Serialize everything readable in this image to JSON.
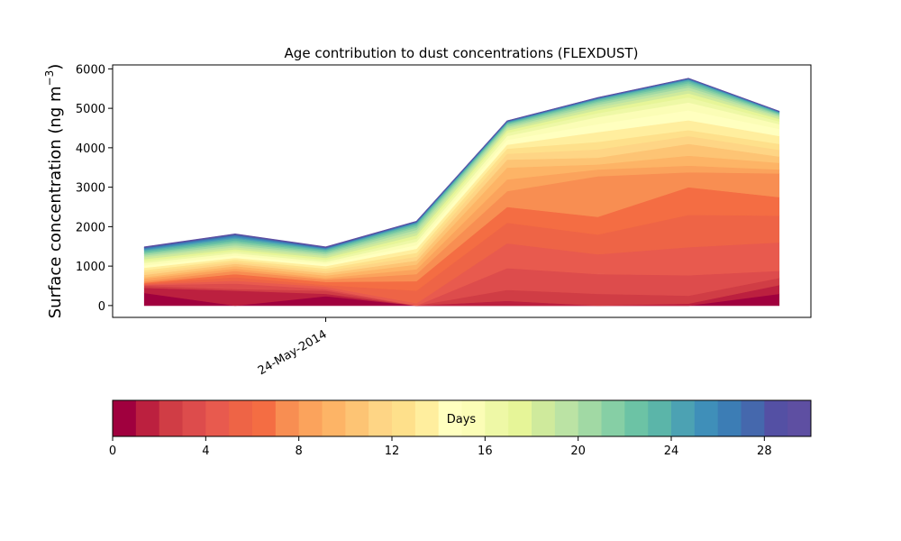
{
  "chart_data": [
    {
      "type": "area",
      "title": "Age contribution to dust concentrations (FLEXDUST)",
      "xlabel": "",
      "ylabel": "Surface concentration (ng m",
      "ylabel_sup": "−3",
      "ylabel_close": ")",
      "xtick_labels": [
        {
          "x": 2,
          "label": "24-May-2014"
        }
      ],
      "yticks": [
        0,
        1000,
        2000,
        3000,
        4000,
        5000,
        6000
      ],
      "ytick_labels": [
        "0",
        "1000",
        "2000",
        "3000",
        "4000",
        "5000",
        "6000"
      ],
      "x": [
        0,
        1,
        2,
        3,
        4,
        5,
        6,
        7
      ],
      "xlim": [
        -0.35,
        7.35
      ],
      "ylim": [
        -300,
        6100
      ],
      "n_days": 30,
      "cumulative_levels": [
        {
          "day": 1,
          "values": [
            320,
            0,
            240,
            0,
            0,
            0,
            0,
            300
          ]
        },
        {
          "day": 2,
          "values": [
            450,
            380,
            300,
            0,
            120,
            0,
            50,
            520
          ]
        },
        {
          "day": 3,
          "values": [
            500,
            420,
            380,
            0,
            400,
            300,
            250,
            700
          ]
        },
        {
          "day": 4,
          "values": [
            520,
            560,
            420,
            0,
            950,
            800,
            770,
            880
          ]
        },
        {
          "day": 5,
          "values": [
            540,
            630,
            480,
            60,
            1580,
            1300,
            1480,
            1600
          ]
        },
        {
          "day": 6,
          "values": [
            560,
            720,
            520,
            380,
            2100,
            1800,
            2300,
            2280
          ]
        },
        {
          "day": 7,
          "values": [
            580,
            800,
            600,
            620,
            2500,
            2250,
            3000,
            2750
          ]
        },
        {
          "day": 8,
          "values": [
            620,
            880,
            660,
            800,
            2900,
            3280,
            3380,
            3350
          ]
        },
        {
          "day": 9,
          "values": [
            680,
            940,
            700,
            920,
            3200,
            3450,
            3550,
            3450
          ]
        },
        {
          "day": 10,
          "values": [
            720,
            1000,
            760,
            1040,
            3500,
            3580,
            3800,
            3620
          ]
        },
        {
          "day": 11,
          "values": [
            780,
            1060,
            820,
            1140,
            3700,
            3750,
            4100,
            3780
          ]
        },
        {
          "day": 12,
          "values": [
            840,
            1110,
            880,
            1240,
            3850,
            3960,
            4300,
            3950
          ]
        },
        {
          "day": 13,
          "values": [
            900,
            1160,
            940,
            1340,
            3980,
            4150,
            4450,
            4100
          ]
        },
        {
          "day": 14,
          "values": [
            960,
            1210,
            1000,
            1440,
            4080,
            4400,
            4700,
            4300
          ]
        },
        {
          "day": 15,
          "values": [
            1020,
            1270,
            1060,
            1530,
            4200,
            4600,
            4950,
            4480
          ]
        },
        {
          "day": 16,
          "values": [
            1080,
            1330,
            1110,
            1620,
            4300,
            4780,
            5150,
            4600
          ]
        },
        {
          "day": 17,
          "values": [
            1130,
            1380,
            1160,
            1700,
            4380,
            4880,
            5280,
            4670
          ]
        },
        {
          "day": 18,
          "values": [
            1180,
            1430,
            1210,
            1780,
            4440,
            4960,
            5380,
            4730
          ]
        },
        {
          "day": 19,
          "values": [
            1230,
            1480,
            1260,
            1850,
            4490,
            5030,
            5460,
            4780
          ]
        },
        {
          "day": 20,
          "values": [
            1270,
            1530,
            1300,
            1920,
            4530,
            5090,
            5530,
            4810
          ]
        },
        {
          "day": 21,
          "values": [
            1310,
            1580,
            1340,
            1980,
            4570,
            5140,
            5590,
            4840
          ]
        },
        {
          "day": 22,
          "values": [
            1340,
            1620,
            1370,
            2020,
            4600,
            5180,
            5640,
            4860
          ]
        },
        {
          "day": 23,
          "values": [
            1370,
            1660,
            1400,
            2060,
            4620,
            5210,
            5680,
            4880
          ]
        },
        {
          "day": 24,
          "values": [
            1400,
            1700,
            1420,
            2080,
            4640,
            5230,
            5710,
            4890
          ]
        },
        {
          "day": 25,
          "values": [
            1420,
            1730,
            1440,
            2100,
            4650,
            5240,
            5730,
            4900
          ]
        },
        {
          "day": 26,
          "values": [
            1440,
            1760,
            1450,
            2110,
            4660,
            5250,
            5740,
            4910
          ]
        },
        {
          "day": 27,
          "values": [
            1460,
            1780,
            1460,
            2120,
            4670,
            5260,
            5750,
            4915
          ]
        },
        {
          "day": 28,
          "values": [
            1470,
            1800,
            1470,
            2130,
            4675,
            5265,
            5755,
            4920
          ]
        },
        {
          "day": 29,
          "values": [
            1480,
            1810,
            1480,
            2135,
            4680,
            5270,
            5760,
            4925
          ]
        },
        {
          "day": 30,
          "values": [
            1490,
            1820,
            1490,
            2140,
            4685,
            5275,
            5765,
            4930
          ]
        }
      ]
    },
    {
      "type": "colorbar",
      "label": "Days",
      "range": [
        0,
        30
      ],
      "ticks": [
        0,
        4,
        8,
        12,
        16,
        20,
        24,
        28
      ],
      "tick_labels": [
        "0",
        "4",
        "8",
        "12",
        "16",
        "20",
        "24",
        "28"
      ],
      "colormap": "Spectral"
    }
  ],
  "colors": {
    "spectral": [
      "#a0003e",
      "#bc203f",
      "#d03d45",
      "#dd4c4c",
      "#e85a4e",
      "#ee6446",
      "#f46d43",
      "#f88e52",
      "#fba35c",
      "#fdb466",
      "#fdc474",
      "#fed585",
      "#fee08b",
      "#ffee9e",
      "#ffffbf",
      "#fbfdb6",
      "#eef8a6",
      "#e6f598",
      "#cfea9c",
      "#bbe3a4",
      "#a1d9a4",
      "#86cfa5",
      "#6cc3a5",
      "#5bb5a9",
      "#4ca2b3",
      "#3f8fb9",
      "#3c7db5",
      "#4568ad",
      "#5450a4",
      "#5e4fa2"
    ]
  }
}
